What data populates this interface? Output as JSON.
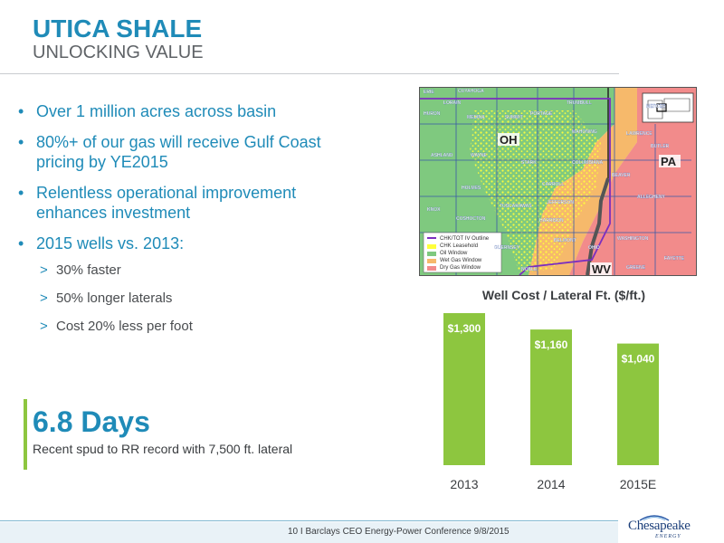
{
  "header": {
    "title": "UTICA SHALE",
    "subtitle": "UNLOCKING VALUE"
  },
  "bullets": [
    {
      "lines": [
        "Over 1 million acres across basin"
      ]
    },
    {
      "lines": [
        "80%+ of our gas will receive Gulf Coast",
        "pricing by YE2015"
      ]
    },
    {
      "lines": [
        "Relentless operational improvement",
        "enhances investment"
      ]
    },
    {
      "lines": [
        "2015 wells vs. 2013:"
      ]
    }
  ],
  "sub_bullets": [
    "30% faster",
    "50% longer laterals",
    "Cost 20% less per foot"
  ],
  "callout": {
    "big": "6.8 Days",
    "small": "Recent spud to RR record with 7,500 ft. lateral"
  },
  "map": {
    "state_labels": [
      "OH",
      "PA",
      "WV"
    ],
    "county_labels": [
      "ERIE",
      "LORAIN",
      "CUYAHOGA",
      "HURON",
      "MEDINA",
      "SUMMIT",
      "PORTAGE",
      "TRUMBULL",
      "MERCER",
      "ASHLAND",
      "WAYNE",
      "STARK",
      "MAHONING",
      "LAWRENCE",
      "BUTLER",
      "COLUMBIANA",
      "BEAVER",
      "HOLMES",
      "CARROLL",
      "ALLEGHENY",
      "KNOX",
      "COSHOCTON",
      "TUSCARAWAS",
      "HARRISON",
      "JEFFERSON",
      "WASHINGTON",
      "GUERNSEY",
      "OHIO",
      "BELMONT",
      "NOBLE",
      "GREENE",
      "FAYETTE"
    ],
    "legend": [
      "CHK/TOT IV Outline",
      "CHK Leasehold",
      "Oil Window",
      "Wet Gas Window",
      "Dry Gas Window"
    ],
    "colors": {
      "oil": "#7fc97f",
      "wet": "#f6b96b",
      "dry": "#f28b8b",
      "leasehold": "#ffff3b",
      "outline": "#7b2fbf"
    }
  },
  "chart_data": {
    "type": "bar",
    "title": "Well Cost / Lateral Ft. ($/ft.)",
    "categories": [
      "2013",
      "2014",
      "2015E"
    ],
    "values": [
      1300,
      1160,
      1040
    ],
    "labels": [
      "$1,300",
      "$1,160",
      "$1,040"
    ],
    "color": "#8dc63f"
  },
  "footer": {
    "text": "10   I   Barclays CEO Energy-Power Conference      9/8/2015"
  },
  "logo": {
    "name": "Chesapeake",
    "tagline": "ENERGY"
  }
}
